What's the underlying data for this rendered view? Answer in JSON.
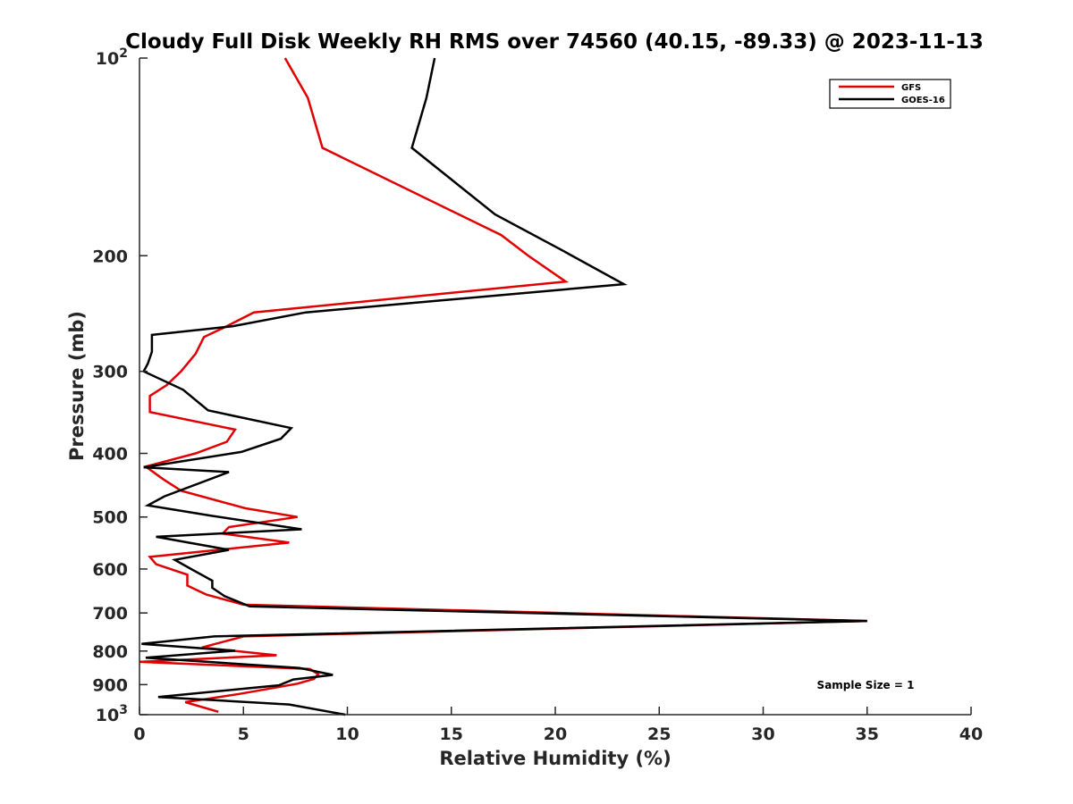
{
  "chart_data": {
    "type": "line",
    "title": "Cloudy Full Disk Weekly RH RMS over 74560 (40.15, -89.33) @ 2023-11-13",
    "xlabel": "Relative Humidity (%)",
    "ylabel": "Pressure (mb)",
    "xlim": [
      0,
      40
    ],
    "ylim": [
      100,
      1000
    ],
    "yscale": "log",
    "y_reversed": true,
    "xticks": [
      0,
      5,
      10,
      15,
      20,
      25,
      30,
      35,
      40
    ],
    "xtick_labels": [
      "0",
      "5",
      "10",
      "15",
      "20",
      "25",
      "30",
      "35",
      "40"
    ],
    "yticks": [
      100,
      200,
      300,
      400,
      500,
      600,
      700,
      800,
      900,
      1000
    ],
    "ytick_labels": [
      {
        "base": "10",
        "exp": "2"
      },
      {
        "text": "200"
      },
      {
        "text": "300"
      },
      {
        "text": "400"
      },
      {
        "text": "500"
      },
      {
        "text": "600"
      },
      {
        "text": "700"
      },
      {
        "text": "800"
      },
      {
        "text": "900"
      },
      {
        "base": "10",
        "exp": "3"
      }
    ],
    "grid": false,
    "legend_position": "top-right",
    "annotation": "Sample Size = 1",
    "series": [
      {
        "name": "GFS",
        "color": "#e00000",
        "x": [
          7,
          8.1,
          8.8,
          17.4,
          18.7,
          20.5,
          5.5,
          4.2,
          3.1,
          2.7,
          2,
          1.3,
          0.5,
          0.5,
          4.6,
          4.2,
          2.7,
          0.3,
          1.1,
          2,
          5.1,
          7.6,
          4.3,
          4,
          7.2,
          0.5,
          0.8,
          2.3,
          2.3,
          3.2,
          5,
          35,
          5,
          3,
          6.6,
          0,
          8.2,
          8.6,
          8.4,
          7.6,
          4.8,
          2.2,
          3.8
        ],
        "y": [
          100,
          115,
          137,
          186,
          200,
          219,
          244,
          256,
          266,
          282,
          300,
          315,
          327,
          346,
          368,
          384,
          400,
          419,
          437,
          456,
          485,
          500,
          518,
          530,
          547,
          575,
          590,
          612,
          636,
          656,
          680,
          720,
          760,
          790,
          812,
          831,
          852,
          868,
          882,
          897,
          930,
          957,
          990
        ]
      },
      {
        "name": "GOES-16",
        "color": "#000000",
        "x": [
          14.2,
          13.8,
          13.1,
          17.1,
          20.3,
          23.3,
          8,
          4.5,
          0.6,
          0.6,
          0.4,
          0.2,
          2.1,
          3.3,
          7.3,
          6.8,
          4.9,
          0.2,
          4.3,
          1.2,
          0.4,
          3.5,
          7.8,
          0.8,
          4.3,
          1.7,
          2.4,
          3.5,
          3.5,
          4.1,
          5.3,
          35,
          3.6,
          0.1,
          4.6,
          0.3,
          7.7,
          9.3,
          7.4,
          6.7,
          0.9,
          7.2,
          9.9
        ],
        "y": [
          100,
          115,
          137,
          173,
          196,
          221,
          244,
          256,
          264,
          280,
          292,
          300,
          320,
          344,
          366,
          380,
          398,
          420,
          427,
          465,
          480,
          498,
          522,
          536,
          561,
          581,
          598,
          625,
          641,
          660,
          684,
          720,
          760,
          780,
          799,
          819,
          849,
          870,
          884,
          902,
          940,
          965,
          1000
        ]
      }
    ]
  }
}
